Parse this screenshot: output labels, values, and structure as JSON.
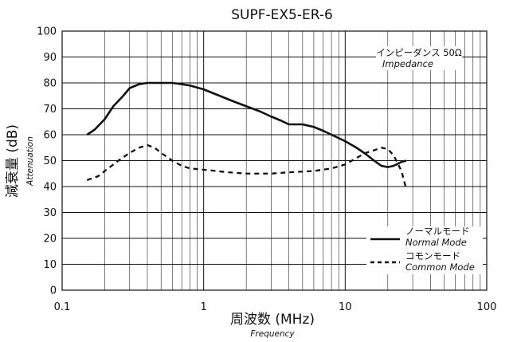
{
  "chart_data": {
    "type": "line",
    "title": "SUPF-EX5-ER-6",
    "xlabel": "周波数 (MHz)",
    "xlabel_sub": "Frequency",
    "ylabel": "減衰量 (dB)",
    "ylabel_sub": "Attenuation",
    "xscale": "log",
    "xlim": [
      0.1,
      100
    ],
    "ylim": [
      0,
      100
    ],
    "x_ticks": [
      0.1,
      1,
      10,
      100
    ],
    "x_tick_labels": [
      "0.1",
      "1",
      "10",
      "100"
    ],
    "y_ticks": [
      0,
      10,
      20,
      30,
      40,
      50,
      60,
      70,
      80,
      90,
      100
    ],
    "y_tick_labels": [
      "0",
      "10",
      "20",
      "30",
      "40",
      "50",
      "60",
      "70",
      "80",
      "90",
      "100"
    ],
    "grid": true,
    "impedance_note": {
      "jp": "インピーダンス 50Ω",
      "en": "Impedance"
    },
    "legend": {
      "position": "bottom-right"
    },
    "series": [
      {
        "name": "ノーマルモード",
        "name_en": "Normal Mode",
        "style": "solid",
        "color": "#111111",
        "points": [
          [
            0.15,
            60
          ],
          [
            0.17,
            62
          ],
          [
            0.2,
            66
          ],
          [
            0.23,
            71
          ],
          [
            0.27,
            75
          ],
          [
            0.3,
            78
          ],
          [
            0.35,
            79.5
          ],
          [
            0.4,
            80
          ],
          [
            0.5,
            80
          ],
          [
            0.6,
            80
          ],
          [
            0.7,
            79.5
          ],
          [
            0.8,
            79
          ],
          [
            1.0,
            77.5
          ],
          [
            1.3,
            75
          ],
          [
            1.6,
            73
          ],
          [
            2.0,
            71
          ],
          [
            2.5,
            69
          ],
          [
            3.0,
            67
          ],
          [
            3.5,
            65.5
          ],
          [
            4.0,
            64
          ],
          [
            5.0,
            64
          ],
          [
            6.0,
            63
          ],
          [
            7.0,
            61.5
          ],
          [
            8.0,
            60
          ],
          [
            10.0,
            57.5
          ],
          [
            12.0,
            55
          ],
          [
            14.0,
            52.5
          ],
          [
            16.0,
            50
          ],
          [
            18.0,
            48
          ],
          [
            20.0,
            47.5
          ],
          [
            22.0,
            48
          ],
          [
            25.0,
            49.5
          ],
          [
            27.0,
            50
          ]
        ]
      },
      {
        "name": "コモンモード",
        "name_en": "Common Mode",
        "style": "dashed",
        "color": "#111111",
        "points": [
          [
            0.15,
            42.5
          ],
          [
            0.18,
            44
          ],
          [
            0.2,
            46
          ],
          [
            0.25,
            50
          ],
          [
            0.3,
            53
          ],
          [
            0.35,
            55
          ],
          [
            0.4,
            56
          ],
          [
            0.45,
            55
          ],
          [
            0.5,
            53
          ],
          [
            0.6,
            50
          ],
          [
            0.7,
            48
          ],
          [
            0.8,
            47
          ],
          [
            1.0,
            46.5
          ],
          [
            1.5,
            45.5
          ],
          [
            2.0,
            45
          ],
          [
            3.0,
            45
          ],
          [
            4.0,
            45.5
          ],
          [
            6.0,
            46
          ],
          [
            8.0,
            47
          ],
          [
            10.0,
            48.5
          ],
          [
            12.0,
            51
          ],
          [
            14.0,
            53
          ],
          [
            16.0,
            54
          ],
          [
            18.0,
            55
          ],
          [
            20.0,
            54.5
          ],
          [
            22.0,
            52
          ],
          [
            25.0,
            46
          ],
          [
            27.0,
            39
          ]
        ]
      }
    ]
  }
}
